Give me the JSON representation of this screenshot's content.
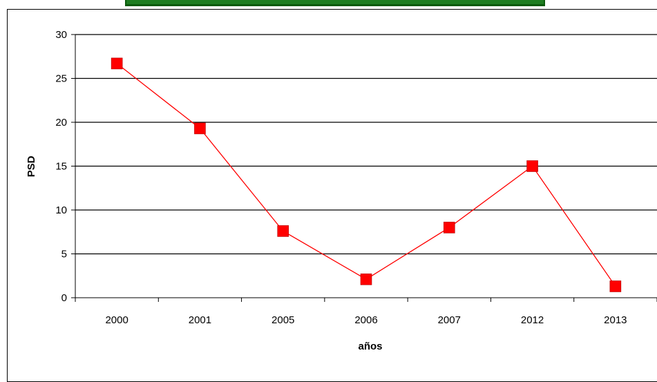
{
  "chart_data": {
    "type": "line",
    "categories": [
      "2000",
      "2001",
      "2005",
      "2006",
      "2007",
      "2012",
      "2013"
    ],
    "series": [
      {
        "values": [
          26.7,
          19.3,
          7.6,
          2.1,
          8.0,
          15.0,
          1.3
        ],
        "color": "#ff0000",
        "marker": "square"
      }
    ],
    "xlabel": "años",
    "ylabel": "PSD",
    "ylim": [
      0,
      30
    ],
    "yticks": [
      "0",
      "5",
      "10",
      "15",
      "20",
      "25",
      "30"
    ],
    "grid": true,
    "legend": "none"
  },
  "colors": {
    "header_bar": "#1e7d21",
    "line": "#ff0000",
    "grid": "#000000"
  }
}
